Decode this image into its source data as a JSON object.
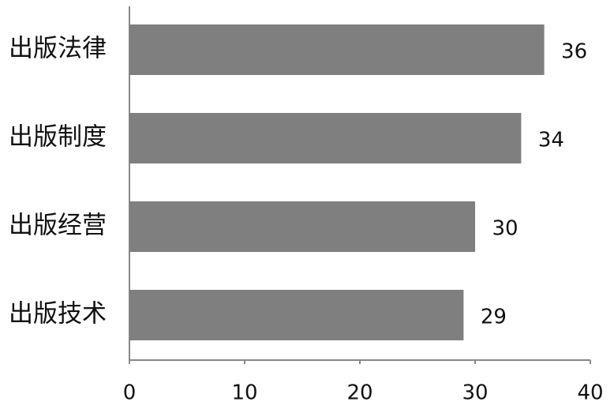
{
  "chart_data": {
    "type": "bar",
    "orientation": "horizontal",
    "categories": [
      "出版法律",
      "出版制度",
      "出版经营",
      "出版技术"
    ],
    "values": [
      36,
      34,
      30,
      29
    ],
    "color": "#7f7f80",
    "xlim": [
      0,
      40
    ],
    "xticks": [
      0,
      10,
      20,
      30,
      40
    ],
    "grid": false
  }
}
